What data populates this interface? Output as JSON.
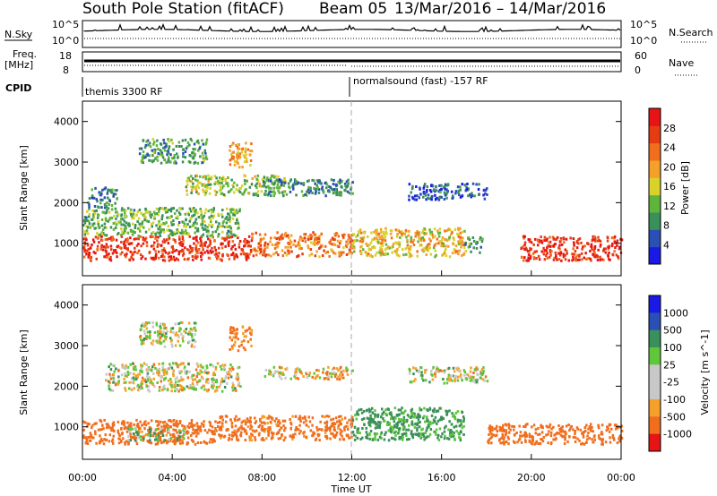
{
  "header": {
    "station": "South Pole Station (fitACF)",
    "beam": "Beam 05",
    "date_range": "13/Mar/2016 – 14/Mar/2016"
  },
  "top_panels": {
    "nsky_label": "N.Sky",
    "nsearch_label": "N.Search",
    "nsky_left_ticks": [
      "10^5",
      "10^0"
    ],
    "nsky_right_ticks": [
      "10^5",
      "10^0"
    ],
    "freq_label_line1": "Freq.",
    "freq_label_line2": "[MHz]",
    "freq_ticks": [
      "18",
      "8"
    ],
    "nave_label": "Nave",
    "nave_ticks": [
      "60",
      "0"
    ],
    "cpid_label": "CPID",
    "cpid_segments": [
      {
        "label": "themis 3300 RF",
        "start_hour": 0
      },
      {
        "label": "normalsound (fast) -157 RF",
        "start_hour": 12
      }
    ]
  },
  "colors": {
    "power_scale": [
      "#1a1ae6",
      "#2a4fb5",
      "#3a8f5a",
      "#5fb43c",
      "#d8d22a",
      "#f5a02a",
      "#f06e1e",
      "#e63c14",
      "#e61414"
    ],
    "velocity_scale": [
      "#e61414",
      "#f06e1e",
      "#f5a02a",
      "#c8c8c8",
      "#c8c8c8",
      "#5fc83a",
      "#3a8f5a",
      "#2a4fb5",
      "#1a1ae6"
    ],
    "cutoff_line": "#aaaaaa"
  },
  "chart_data": [
    {
      "type": "heatmap",
      "name": "power",
      "ylabel": "Slant Range [km]",
      "ylim": [
        200,
        4500
      ],
      "yticks": [
        1000,
        2000,
        3000,
        4000
      ],
      "xlim": [
        0,
        24
      ],
      "colorbar_label": "Power [dB]",
      "colorbar_ticks": [
        4,
        8,
        12,
        16,
        20,
        24,
        28
      ],
      "clim": [
        0,
        32
      ],
      "regions": [
        {
          "x0": 0.0,
          "x1": 7.5,
          "y0": 600,
          "y1": 1200,
          "value": 28
        },
        {
          "x0": 7.5,
          "x1": 12.0,
          "y0": 700,
          "y1": 1300,
          "value": 22
        },
        {
          "x0": 12.0,
          "x1": 17.0,
          "y0": 700,
          "y1": 1400,
          "value": 18
        },
        {
          "x0": 17.0,
          "x1": 17.8,
          "y0": 800,
          "y1": 1200,
          "value": 10
        },
        {
          "x0": 19.5,
          "x1": 24.0,
          "y0": 600,
          "y1": 1200,
          "value": 28
        },
        {
          "x0": 0.0,
          "x1": 7.0,
          "y0": 1200,
          "y1": 1900,
          "value": 12
        },
        {
          "x0": 2.5,
          "x1": 5.5,
          "y0": 3000,
          "y1": 3600,
          "value": 10
        },
        {
          "x0": 6.5,
          "x1": 7.5,
          "y0": 2900,
          "y1": 3500,
          "value": 18
        },
        {
          "x0": 4.5,
          "x1": 9.0,
          "y0": 2200,
          "y1": 2700,
          "value": 14
        },
        {
          "x0": 8.0,
          "x1": 12.0,
          "y0": 2200,
          "y1": 2600,
          "value": 8
        },
        {
          "x0": 14.5,
          "x1": 18.0,
          "y0": 2100,
          "y1": 2500,
          "value": 6
        },
        {
          "x0": 0.2,
          "x1": 1.5,
          "y0": 1900,
          "y1": 2400,
          "value": 8
        }
      ]
    },
    {
      "type": "heatmap",
      "name": "velocity",
      "ylabel": "Slant Range [km]",
      "ylim": [
        200,
        4500
      ],
      "yticks": [
        1000,
        2000,
        3000,
        4000
      ],
      "xlim": [
        0,
        24
      ],
      "xlabel": "Time UT",
      "xticks": [
        "00:00",
        "04:00",
        "08:00",
        "12:00",
        "16:00",
        "20:00",
        "00:00"
      ],
      "xtick_hours": [
        0,
        4,
        8,
        12,
        16,
        20,
        24
      ],
      "colorbar_label": "Velocity [m s^-1]",
      "colorbar_ticks": [
        "1000",
        "500",
        "100",
        "25",
        "-25",
        "-100",
        "-500",
        "-1000"
      ],
      "regions": [
        {
          "x0": 0.0,
          "x1": 6.0,
          "y0": 600,
          "y1": 1200,
          "value": -300
        },
        {
          "x0": 2.0,
          "x1": 4.5,
          "y0": 700,
          "y1": 1000,
          "value": 80
        },
        {
          "x0": 6.0,
          "x1": 12.0,
          "y0": 700,
          "y1": 1300,
          "value": -200
        },
        {
          "x0": 12.0,
          "x1": 17.0,
          "y0": 700,
          "y1": 1500,
          "value": 150
        },
        {
          "x0": 18.0,
          "x1": 24.0,
          "y0": 600,
          "y1": 1100,
          "value": -300
        },
        {
          "x0": 1.0,
          "x1": 7.0,
          "y0": 1900,
          "y1": 2600,
          "value": 0
        },
        {
          "x0": 2.5,
          "x1": 5.0,
          "y0": 3000,
          "y1": 3600,
          "value": 0
        },
        {
          "x0": 6.5,
          "x1": 7.5,
          "y0": 2900,
          "y1": 3500,
          "value": -150
        },
        {
          "x0": 8.0,
          "x1": 12.0,
          "y0": 2200,
          "y1": 2500,
          "value": -30
        },
        {
          "x0": 14.5,
          "x1": 18.0,
          "y0": 2100,
          "y1": 2500,
          "value": 0
        }
      ]
    }
  ]
}
